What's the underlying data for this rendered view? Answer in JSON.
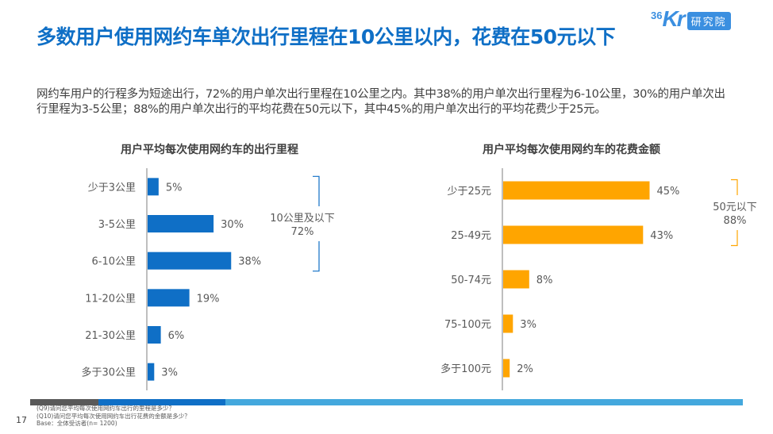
{
  "header": {
    "title": "多数用户使用网约车单次出行里程在10公里以内，花费在50元以下",
    "logo_text_num": "36",
    "logo_text_kr": "Kr",
    "logo_badge": "研究院",
    "summary": "网约车用户的行程多为短途出行，72%的用户单次出行里程在10公里之内。其中38%的用户单次出行里程为6-10公里，30%的用户单次出行里程为3-5公里；88%的用户单次出行的平均花费在50元以下，其中45%的用户单次出行的平均花费少于25元。"
  },
  "colors": {
    "title": "#0f6fc6",
    "bar_left": "#0f6fc6",
    "bar_right": "#ffa500",
    "axis": "#bfbfbf",
    "footer_grey": "#595959",
    "footer_dark_blue": "#0f6fc6",
    "footer_light_blue": "#44a8dd"
  },
  "chart_data": [
    {
      "type": "bar",
      "orientation": "horizontal",
      "title": "用户平均每次使用网约车的出行里程",
      "categories": [
        "少于3公里",
        "3-5公里",
        "6-10公里",
        "11-20公里",
        "21-30公里",
        "多于30公里"
      ],
      "values": [
        5,
        30,
        38,
        19,
        6,
        3
      ],
      "labels": [
        "5%",
        "30%",
        "38%",
        "19%",
        "6%",
        "3%"
      ],
      "unit": "%",
      "xlim": [
        0,
        45
      ],
      "bracket": {
        "covers": [
          "少于3公里",
          "3-5公里",
          "6-10公里"
        ],
        "label_line1": "10公里及以下",
        "label_line2": "72%"
      }
    },
    {
      "type": "bar",
      "orientation": "horizontal",
      "title": "用户平均每次使用网约车的花费金额",
      "categories": [
        "少于25元",
        "25-49元",
        "50-74元",
        "75-100元",
        "多于100元"
      ],
      "values": [
        45,
        43,
        8,
        3,
        2
      ],
      "labels": [
        "45%",
        "43%",
        "8%",
        "3%",
        "2%"
      ],
      "unit": "%",
      "xlim": [
        0,
        55
      ],
      "bracket": {
        "covers": [
          "少于25元",
          "25-49元"
        ],
        "label_line1": "50元以下",
        "label_line2": "88%"
      }
    }
  ],
  "footer": {
    "page_number": "17",
    "notes": [
      "(Q9)请问您平均每次使用网约车出行的里程是多少？",
      "(Q10)请问您平均每次使用网约车出行花费的金额是多少？",
      "Base：全体受访者(n= 1200)"
    ]
  }
}
